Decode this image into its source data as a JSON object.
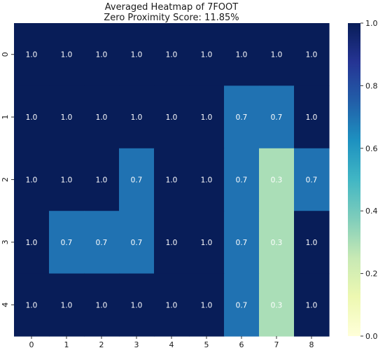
{
  "chart_data": {
    "type": "heatmap",
    "title": "Averaged Heatmap of 7FOOT",
    "subtitle": "Zero Proximity Score: 11.85%",
    "xlabel": "",
    "ylabel": "",
    "x_categories": [
      "0",
      "1",
      "2",
      "3",
      "4",
      "5",
      "6",
      "7",
      "8"
    ],
    "y_categories": [
      "0",
      "1",
      "2",
      "3",
      "4"
    ],
    "values": [
      [
        1.0,
        1.0,
        1.0,
        1.0,
        1.0,
        1.0,
        1.0,
        1.0,
        1.0
      ],
      [
        1.0,
        1.0,
        1.0,
        1.0,
        1.0,
        1.0,
        0.7,
        0.7,
        1.0
      ],
      [
        1.0,
        1.0,
        1.0,
        0.7,
        1.0,
        1.0,
        0.7,
        0.3,
        0.7
      ],
      [
        1.0,
        0.7,
        0.7,
        0.7,
        1.0,
        1.0,
        0.7,
        0.3,
        1.0
      ],
      [
        1.0,
        1.0,
        1.0,
        1.0,
        1.0,
        1.0,
        0.7,
        0.3,
        1.0
      ]
    ],
    "annotations": [
      [
        "1.0",
        "1.0",
        "1.0",
        "1.0",
        "1.0",
        "1.0",
        "1.0",
        "1.0",
        "1.0"
      ],
      [
        "1.0",
        "1.0",
        "1.0",
        "1.0",
        "1.0",
        "1.0",
        "0.7",
        "0.7",
        "1.0"
      ],
      [
        "1.0",
        "1.0",
        "1.0",
        "0.7",
        "1.0",
        "1.0",
        "0.7",
        "0.3",
        "0.7"
      ],
      [
        "1.0",
        "0.7",
        "0.7",
        "0.7",
        "1.0",
        "1.0",
        "0.7",
        "0.3",
        "1.0"
      ],
      [
        "1.0",
        "1.0",
        "1.0",
        "1.0",
        "1.0",
        "1.0",
        "0.7",
        "0.3",
        "1.0"
      ]
    ],
    "colorbar": {
      "range": [
        0.0,
        1.0
      ],
      "ticks": [
        "0.0",
        "0.2",
        "0.4",
        "0.6",
        "0.8",
        "1.0"
      ],
      "colormap": "YlGnBu"
    },
    "colors": {
      "high": "#081d58",
      "mid": "#1d91c0",
      "low": "#ffffd9",
      "annotation_text": "#ffffff"
    },
    "grid": false
  }
}
